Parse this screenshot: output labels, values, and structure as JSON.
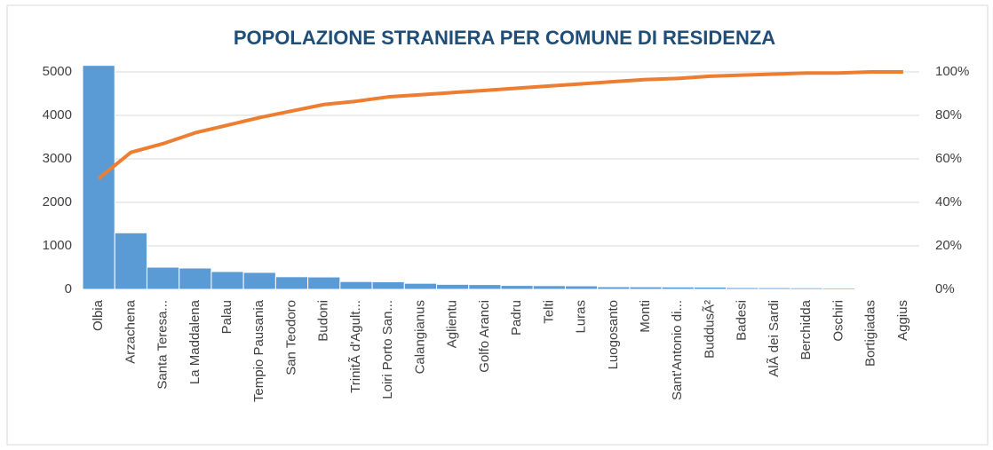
{
  "chart_data": {
    "type": "pareto",
    "title": "POPOLAZIONE STRANIERA PER COMUNE DI RESIDENZA",
    "categories": [
      "Olbia",
      "Arzachena",
      "Santa Teresa...",
      "La Maddalena",
      "Palau",
      "Tempio Pausania",
      "San Teodoro",
      "Budoni",
      "TrinitÃ  d'Agult...",
      "Loiri Porto San...",
      "Calangianus",
      "Aglientu",
      "Golfo Aranci",
      "Padru",
      "Telti",
      "Luras",
      "Luogosanto",
      "Monti",
      "Sant'Antonio di...",
      "BuddusÃ²",
      "Badesi",
      "AlÃ  dei Sardi",
      "Berchidda",
      "Oschiri",
      "Bortigiadas",
      "Aggius"
    ],
    "series": [
      {
        "color": "#5b9bd5",
        "values": [
          5150,
          1300,
          510,
          490,
          410,
          390,
          290,
          285,
          180,
          175,
          140,
          115,
          110,
          90,
          85,
          80,
          60,
          58,
          55,
          52,
          40,
          38,
          35,
          32,
          10,
          8
        ]
      },
      {
        "color": "#ed7d31",
        "axis": "y2",
        "values": [
          51,
          63,
          67,
          72,
          75.5,
          79,
          82,
          85,
          86.5,
          88.5,
          89.5,
          90.5,
          91.5,
          92.5,
          93.5,
          94.5,
          95.5,
          96.5,
          97,
          98,
          98.5,
          99,
          99.5,
          99.5,
          100,
          100
        ]
      }
    ],
    "ylim": [
      0,
      5000
    ],
    "yticks": [
      0,
      1000,
      2000,
      3000,
      4000,
      5000
    ],
    "y2lim": [
      0,
      100
    ],
    "y2ticks": [
      {
        "value": 0,
        "label": "0%"
      },
      {
        "value": 20,
        "label": "20%"
      },
      {
        "value": 40,
        "label": "40%"
      },
      {
        "value": 60,
        "label": "60%"
      },
      {
        "value": 80,
        "label": "80%"
      },
      {
        "value": 100,
        "label": "100%"
      }
    ],
    "grid": true
  }
}
